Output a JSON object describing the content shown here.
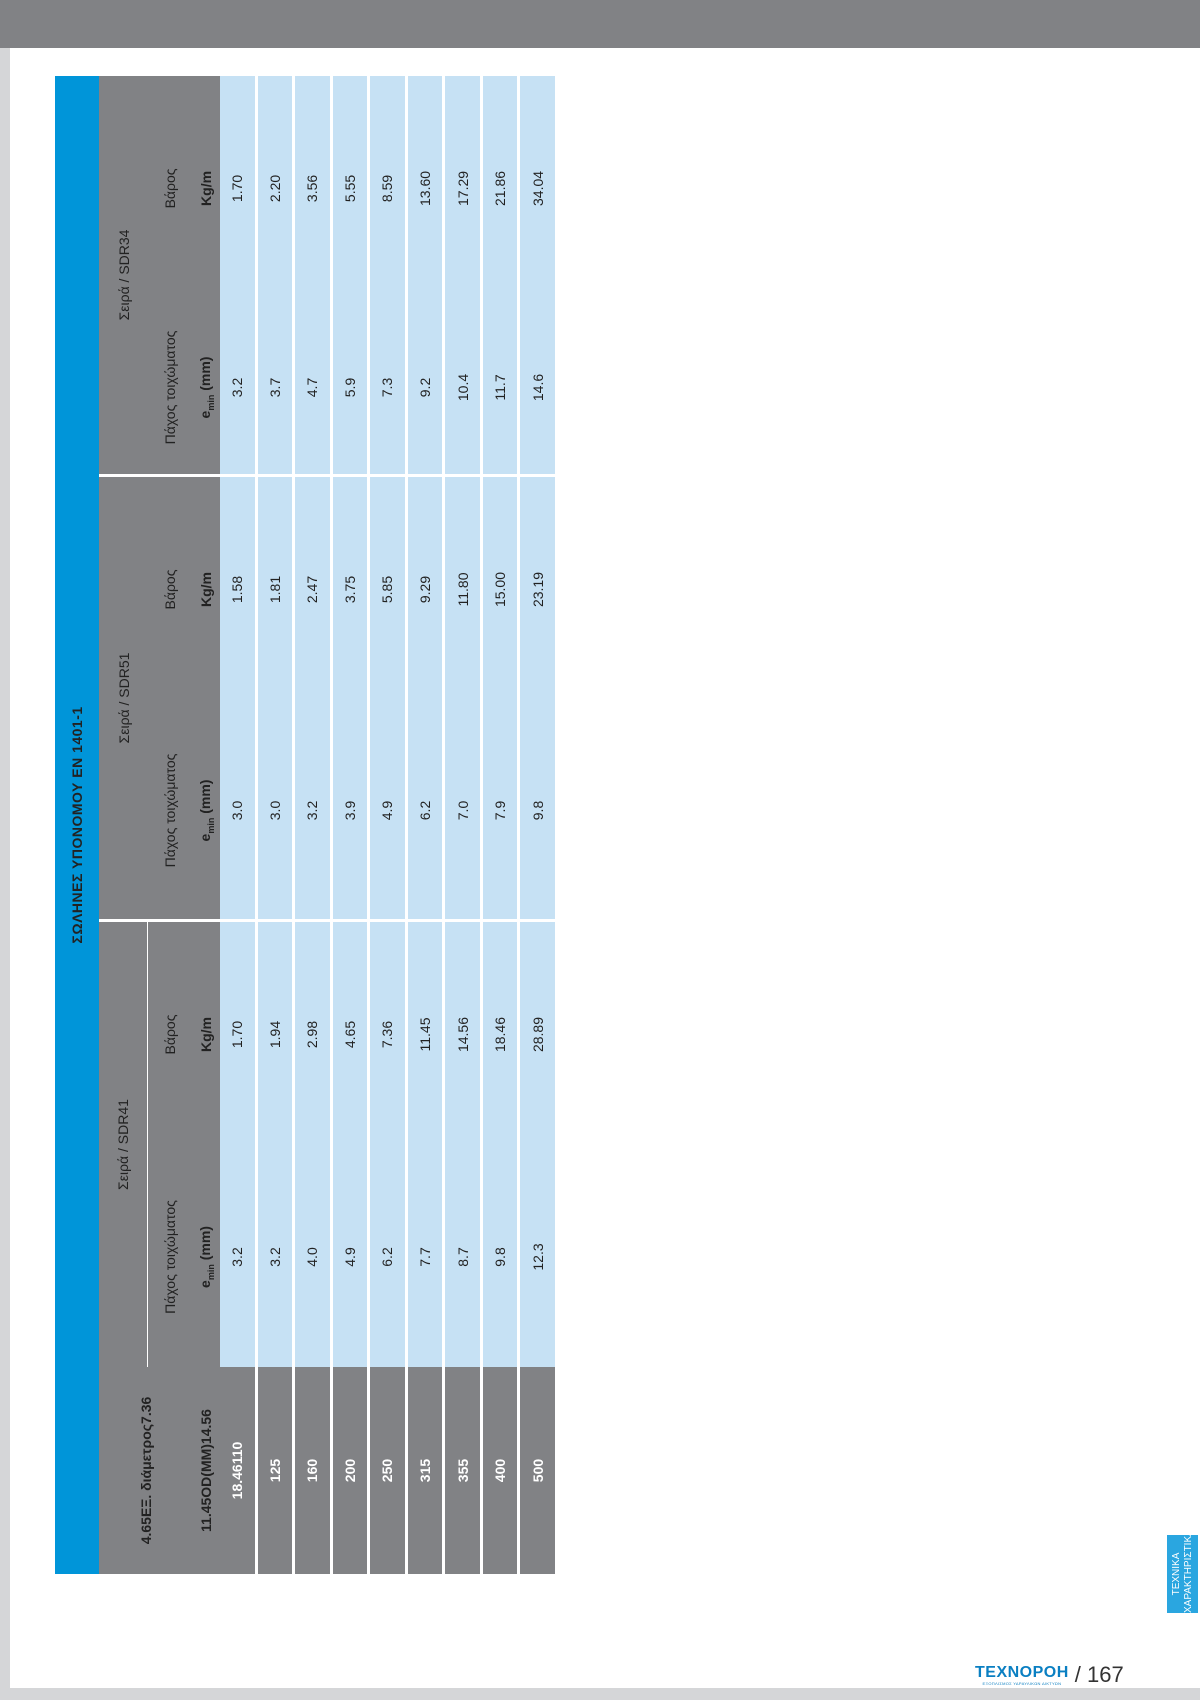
{
  "title": "ΣΩΛΗΝΕΣ ΥΠΟΝΟΜΟΥ ΕΝ 1401-1",
  "header": {
    "dn_label": "4.65ΕΞ. διάμετρος7.36",
    "dn_unit": "11.45OD(MM)14.56",
    "series": [
      {
        "name": "Σειρά / SDR41",
        "thickness_label": "Πάχος τοιχώματος",
        "weight_label": "Βάρος",
        "thickness_unit": "e",
        "thickness_unit_sub": "min",
        "thickness_unit_rest": " (mm)",
        "weight_unit": "Kg/m"
      },
      {
        "name": "Σειρά / SDR51",
        "thickness_label": "Πάχος τοιχώματος",
        "weight_label": "Βάρος",
        "thickness_unit": "e",
        "thickness_unit_sub": "min",
        "thickness_unit_rest": " (mm)",
        "weight_unit": "Kg/m"
      },
      {
        "name": "Σειρά / SDR34",
        "thickness_label": "Πάχος τοιχώματος",
        "weight_label": "Βάρος",
        "thickness_unit": "e",
        "thickness_unit_sub": "min",
        "thickness_unit_rest": " (mm)",
        "weight_unit": "Kg/m"
      }
    ]
  },
  "rows": [
    [
      "18.46110",
      "3.2",
      "1.70",
      "3.0",
      "1.58",
      "3.2",
      "1.70"
    ],
    [
      "125",
      "3.2",
      "1.94",
      "3.0",
      "1.81",
      "3.7",
      "2.20"
    ],
    [
      "160",
      "4.0",
      "2.98",
      "3.2",
      "2.47",
      "4.7",
      "3.56"
    ],
    [
      "200",
      "4.9",
      "4.65",
      "3.9",
      "3.75",
      "5.9",
      "5.55"
    ],
    [
      "250",
      "6.2",
      "7.36",
      "4.9",
      "5.85",
      "7.3",
      "8.59"
    ],
    [
      "315",
      "7.7",
      "11.45",
      "6.2",
      "9.29",
      "9.2",
      "13.60"
    ],
    [
      "355",
      "8.7",
      "14.56",
      "7.0",
      "11.80",
      "10.4",
      "17.29"
    ],
    [
      "400",
      "9.8",
      "18.46",
      "7.9",
      "15.00",
      "11.7",
      "21.86"
    ],
    [
      "500",
      "12.3",
      "28.89",
      "9.8",
      "23.19",
      "14.6",
      "34.04"
    ]
  ],
  "side_tab": {
    "line1": "ΤΕΧΝΙΚΑ",
    "line2": "ΧΑΡΑΚΤΗΡΙΣΤΙΚΑ"
  },
  "footer": {
    "brand": "ΤΕΧΝΟΡΟΗ",
    "tagline": "ΕΞΟΠΛΙΣΜΟΣ ΥΔΡΑΥΛΙΚΩΝ ΔΙΚΤΥΩΝ",
    "page": "/ 167"
  },
  "colors": {
    "accent": "#0095d9",
    "header_gray": "#818285",
    "cell_blue": "#c6e1f4",
    "tab_blue": "#2aa6e0"
  }
}
